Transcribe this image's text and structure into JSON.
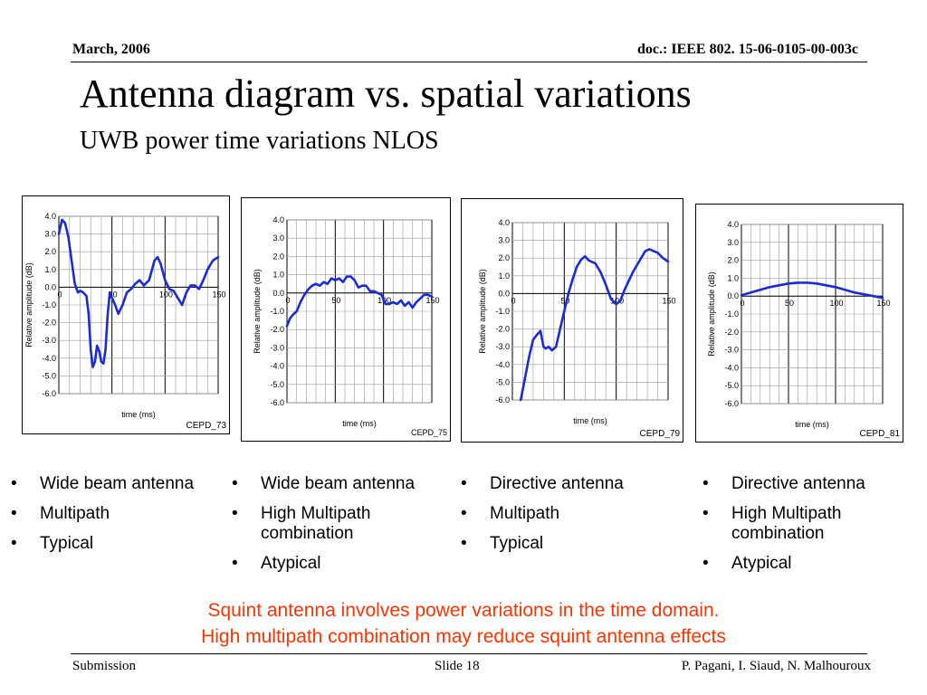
{
  "header": {
    "date": "March, 2006",
    "doc": "doc.: IEEE 802. 15-06-0105-00-003c"
  },
  "title": "Antenna diagram vs. spatial variations",
  "subtitle": "UWB power time variations NLOS",
  "chart_data": [
    {
      "type": "line",
      "id": "CEPD_73",
      "xlabel": "time (ms)",
      "ylabel": "Relative amplitude (dB)",
      "xlim": [
        0,
        150
      ],
      "ylim": [
        -6.0,
        4.0
      ],
      "xticks": [
        "0",
        "50",
        "100",
        "150"
      ],
      "yticks": [
        "4.0",
        "3.0",
        "2.0",
        "1.0",
        "0.0",
        "-1.0",
        "-2.0",
        "-3.0",
        "-4.0",
        "-5.0",
        "-6.0"
      ],
      "grid": true,
      "line_color": "#1a2bd6",
      "x": [
        0,
        3,
        6,
        9,
        12,
        15,
        18,
        20,
        23,
        26,
        28,
        30,
        32,
        34,
        36,
        38,
        40,
        42,
        44,
        46,
        48,
        50,
        53,
        56,
        60,
        64,
        68,
        72,
        76,
        80,
        85,
        90,
        93,
        96,
        100,
        104,
        108,
        112,
        116,
        120,
        124,
        128,
        132,
        136,
        140,
        145,
        150
      ],
      "y": [
        3.0,
        3.8,
        3.6,
        2.8,
        1.5,
        0.2,
        -0.3,
        -0.2,
        -0.3,
        -0.5,
        -1.5,
        -3.5,
        -4.5,
        -4.2,
        -3.3,
        -3.6,
        -4.2,
        -4.3,
        -3.5,
        -1.5,
        -0.3,
        -0.6,
        -1.0,
        -1.5,
        -1.0,
        -0.3,
        -0.1,
        0.2,
        0.4,
        0.1,
        0.4,
        1.5,
        1.7,
        1.3,
        0.4,
        -0.1,
        -0.2,
        -0.6,
        -1.0,
        -0.3,
        0.1,
        0.1,
        -0.1,
        0.4,
        1.0,
        1.5,
        1.7
      ]
    },
    {
      "type": "line",
      "id": "CEPD_75",
      "xlabel": "time (ms)",
      "ylabel": "Relative amplitude (dB)",
      "xlim": [
        0,
        150
      ],
      "ylim": [
        -6.0,
        4.0
      ],
      "xticks": [
        "0",
        "50",
        "100",
        "150"
      ],
      "yticks": [
        "4.0",
        "3.0",
        "2.0",
        "1.0",
        "0.0",
        "-1.0",
        "-2.0",
        "-3.0",
        "-4.0",
        "-5.0",
        "-6.0"
      ],
      "grid": true,
      "line_color": "#1a2bd6",
      "x": [
        0,
        3,
        6,
        10,
        14,
        18,
        22,
        26,
        30,
        34,
        38,
        42,
        46,
        50,
        54,
        58,
        62,
        66,
        70,
        74,
        78,
        82,
        86,
        90,
        94,
        98,
        102,
        106,
        110,
        114,
        118,
        122,
        126,
        130,
        134,
        138,
        142,
        146,
        150
      ],
      "y": [
        -1.8,
        -1.4,
        -1.2,
        -1.0,
        -0.5,
        -0.1,
        0.2,
        0.4,
        0.5,
        0.4,
        0.6,
        0.5,
        0.8,
        0.7,
        0.8,
        0.6,
        0.9,
        0.9,
        0.7,
        0.3,
        0.4,
        0.4,
        0.1,
        0.1,
        0.0,
        -0.1,
        -0.6,
        -0.6,
        -0.5,
        -0.6,
        -0.4,
        -0.7,
        -0.5,
        -0.8,
        -0.5,
        -0.3,
        -0.1,
        -0.1,
        -0.2
      ]
    },
    {
      "type": "line",
      "id": "CEPD_79",
      "xlabel": "time (ms)",
      "ylabel": "Relative amplitude (dB)",
      "xlim": [
        0,
        150
      ],
      "ylim": [
        -6.0,
        4.0
      ],
      "xticks": [
        "0",
        "50",
        "100",
        "150"
      ],
      "yticks": [
        "4.0",
        "3.0",
        "2.0",
        "1.0",
        "0.0",
        "-1.0",
        "-2.0",
        "-3.0",
        "-4.0",
        "-5.0",
        "-6.0"
      ],
      "grid": true,
      "line_color": "#1a2bd6",
      "x": [
        8,
        12,
        16,
        20,
        24,
        27,
        30,
        32,
        35,
        38,
        42,
        46,
        50,
        54,
        58,
        62,
        66,
        70,
        73,
        76,
        80,
        85,
        90,
        95,
        100,
        104,
        108,
        112,
        116,
        120,
        124,
        128,
        132,
        136,
        140,
        145,
        150
      ],
      "y": [
        -6.0,
        -4.8,
        -3.6,
        -2.6,
        -2.3,
        -2.1,
        -3.0,
        -3.1,
        -3.0,
        -3.2,
        -3.0,
        -2.0,
        -1.0,
        0.0,
        0.8,
        1.5,
        1.9,
        2.1,
        1.9,
        1.8,
        1.7,
        1.2,
        0.5,
        -0.3,
        -0.6,
        -0.4,
        0.2,
        0.7,
        1.2,
        1.6,
        2.0,
        2.4,
        2.5,
        2.4,
        2.3,
        2.0,
        1.8
      ]
    },
    {
      "type": "line",
      "id": "CEPD_81",
      "xlabel": "time (ms)",
      "ylabel": "Relative amplitude (dB)",
      "xlim": [
        0,
        150
      ],
      "ylim": [
        -6.0,
        4.0
      ],
      "xticks": [
        "0",
        "50",
        "100",
        "150"
      ],
      "yticks": [
        "4.0",
        "3.0",
        "2.0",
        "1.0",
        "0.0",
        "-1.0",
        "-2.0",
        "-3.0",
        "-4.0",
        "-5.0",
        "-6.0"
      ],
      "grid": true,
      "line_color": "#1a2bd6",
      "x": [
        0,
        10,
        20,
        30,
        40,
        50,
        60,
        70,
        80,
        90,
        100,
        110,
        120,
        130,
        140,
        150
      ],
      "y": [
        0.05,
        0.2,
        0.35,
        0.5,
        0.6,
        0.7,
        0.75,
        0.75,
        0.7,
        0.6,
        0.5,
        0.35,
        0.2,
        0.1,
        0.0,
        -0.1
      ]
    }
  ],
  "bullet_lists": [
    [
      "Wide beam antenna",
      "Multipath",
      "Typical"
    ],
    [
      "Wide beam antenna",
      "High Multipath combination",
      "Atypical"
    ],
    [
      "Directive antenna",
      "Multipath",
      "Typical"
    ],
    [
      "Directive antenna",
      "High Multipath combination",
      "Atypical"
    ]
  ],
  "conclusion": {
    "line1": "Squint antenna involves power variations in the time domain.",
    "line2": "High multipath combination may reduce squint antenna effects",
    "color": "#ff3300"
  },
  "footer": {
    "left": "Submission",
    "center": "Slide 18",
    "right": "P. Pagani, I. Siaud, N. Malhouroux"
  }
}
